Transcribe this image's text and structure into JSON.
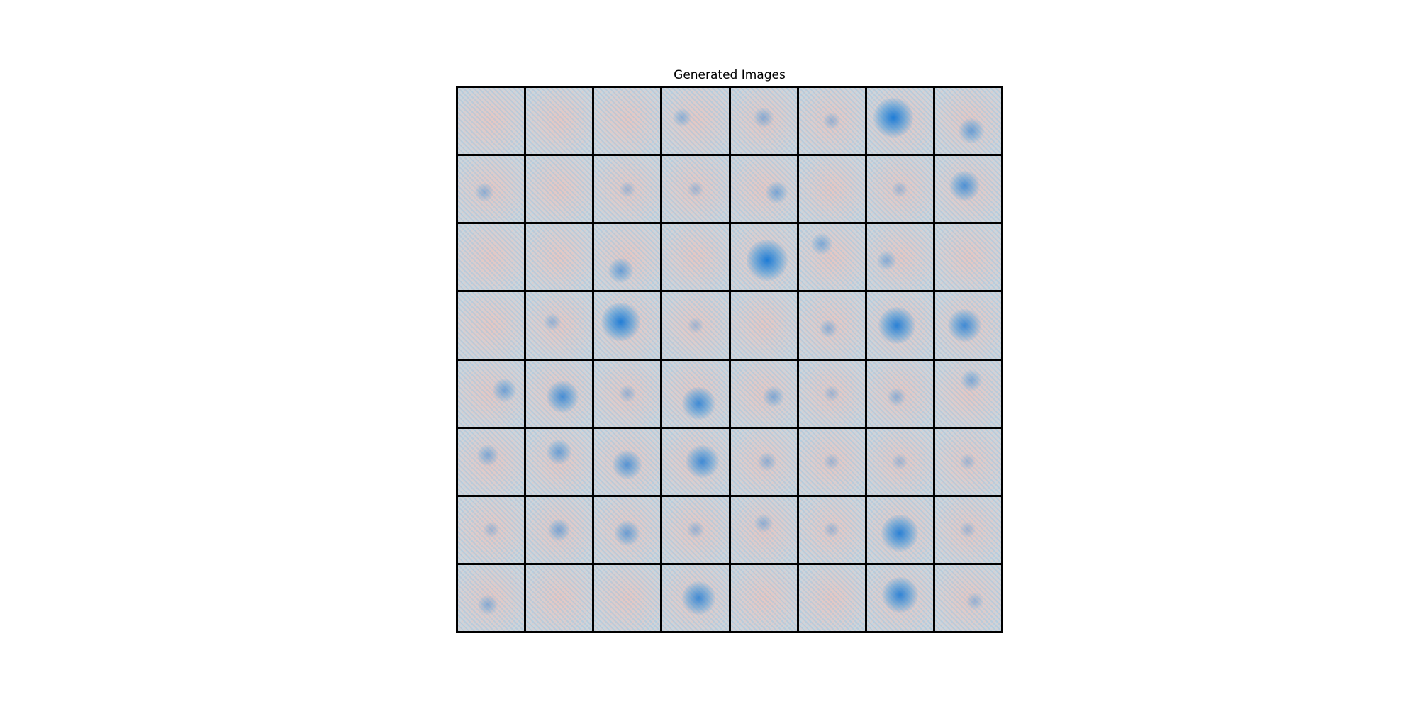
{
  "title": "Generated Images",
  "grid": {
    "rows": 8,
    "cols": 8,
    "accent_color": "#1e88e5",
    "tiles": [
      [
        0.0,
        0.0,
        0.0,
        0.15,
        0.2,
        0.1,
        0.95,
        0.4
      ],
      [
        0.15,
        0.0,
        0.05,
        0.05,
        0.3,
        0.0,
        0.05,
        0.6
      ],
      [
        0.0,
        0.0,
        0.4,
        0.0,
        1.0,
        0.25,
        0.2,
        0.0
      ],
      [
        0.0,
        0.1,
        0.9,
        0.05,
        0.0,
        0.15,
        0.85,
        0.7
      ],
      [
        0.35,
        0.65,
        0.1,
        0.7,
        0.25,
        0.05,
        0.15,
        0.25
      ],
      [
        0.25,
        0.4,
        0.55,
        0.7,
        0.15,
        0.05,
        0.05,
        0.05
      ],
      [
        0.05,
        0.3,
        0.4,
        0.1,
        0.15,
        0.05,
        0.85,
        0.05
      ],
      [
        0.2,
        0.0,
        0.0,
        0.7,
        0.0,
        0.0,
        0.8,
        0.1
      ]
    ]
  }
}
